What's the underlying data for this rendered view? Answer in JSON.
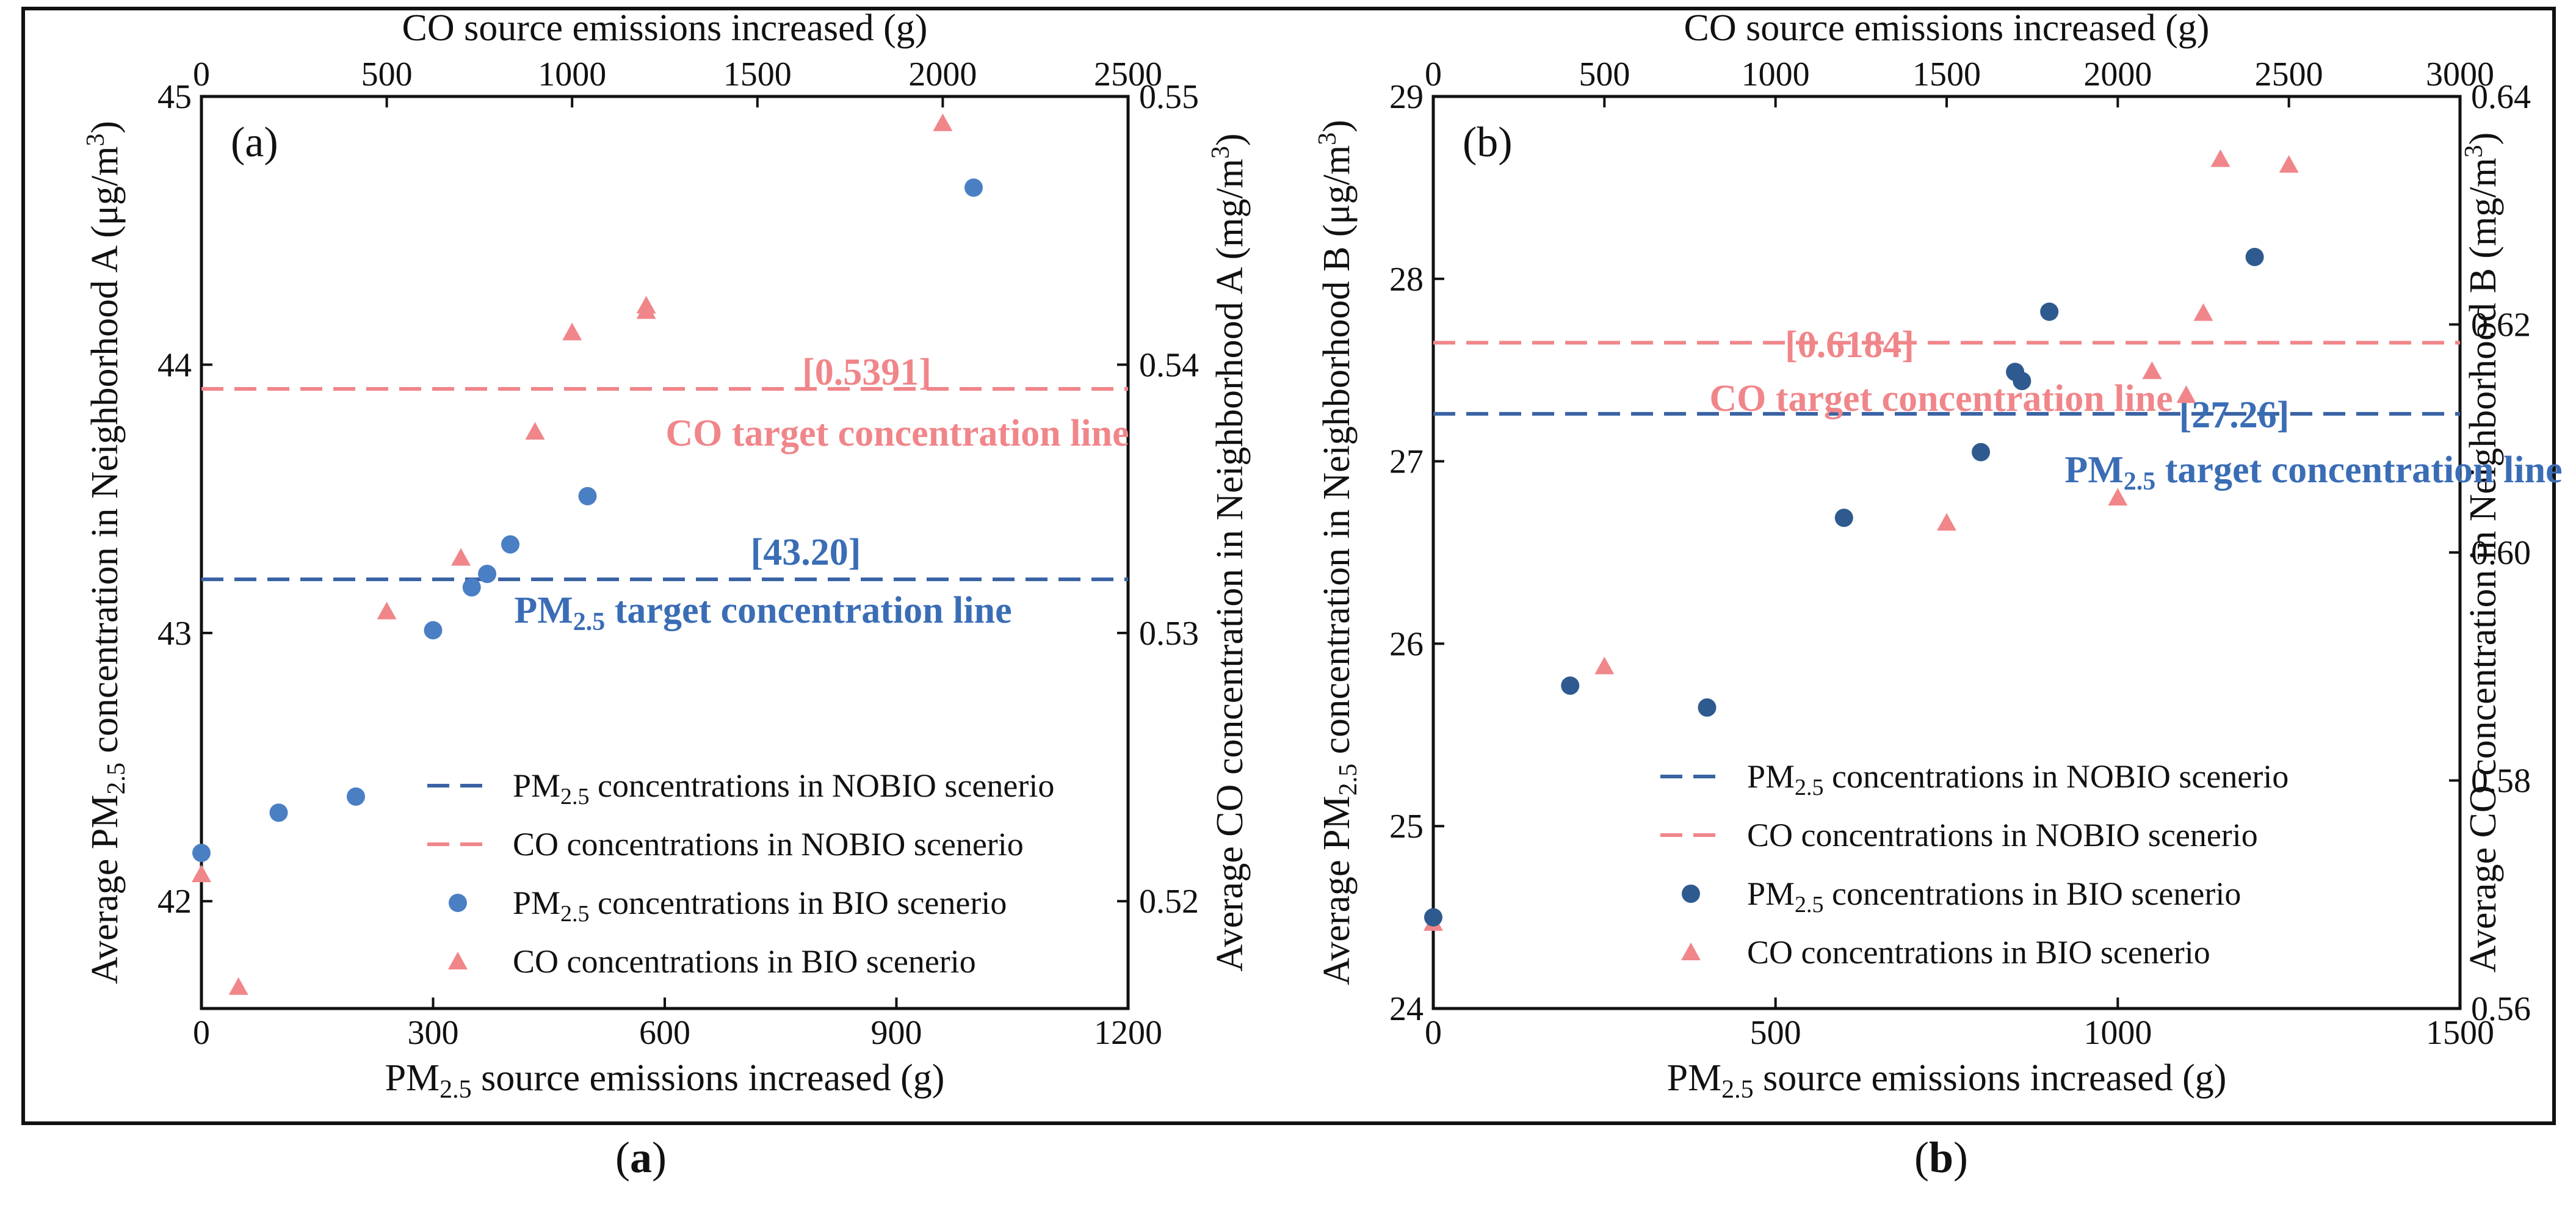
{
  "colors": {
    "pm_marker_a": "#4a7fc4",
    "pm_marker_b": "#2e5a8f",
    "co_marker": "#f0868a",
    "pm_line": "#3a63a3",
    "co_line": "#f0868a",
    "pm_text": "#3a6db5",
    "co_text": "#f0868a"
  },
  "captions": {
    "a": "a",
    "b": "b"
  },
  "chart_data": [
    {
      "type": "scatter",
      "panel_label": "(a)",
      "xlabel_main": "PM",
      "xlabel_sub": "2.5",
      "xlabel_rest": " source emissions increased (g)",
      "xlabel_top": "CO source emissions increased (g)",
      "ylabel_left_main": "Average PM",
      "ylabel_left_sub": "2.5",
      "ylabel_left_rest": " concentration in Neighborhood A (μg/m",
      "ylabel_left_sup": "3",
      "ylabel_left_end": ")",
      "ylabel_right_main": "Average CO concentration in Neighborhood A (mg/m",
      "ylabel_right_sup": "3",
      "ylabel_right_end": ")",
      "xlim": [
        0,
        1200
      ],
      "xticks": [
        "0",
        "300",
        "600",
        "900",
        "1200"
      ],
      "xlim_top": [
        0,
        2500
      ],
      "xticks_top": [
        "0",
        "500",
        "1000",
        "1500",
        "2000",
        "2500"
      ],
      "ylim_left": [
        41.6,
        45
      ],
      "yticks_left": [
        "42",
        "43",
        "44",
        "45"
      ],
      "ylim_right": [
        0.516,
        0.55
      ],
      "yticks_right": [
        "0.52",
        "0.53",
        "0.54",
        "0.55"
      ],
      "pm_bio": {
        "x": [
          0,
          100,
          200,
          300,
          350,
          370,
          400,
          500,
          1000
        ],
        "y": [
          42.18,
          42.33,
          42.39,
          43.01,
          43.17,
          43.22,
          43.33,
          43.51,
          44.66
        ]
      },
      "co_bio": {
        "x": [
          0,
          100,
          500,
          700,
          900,
          1000,
          1200,
          1200,
          2000
        ],
        "y": [
          0.521,
          0.5168,
          0.5308,
          0.5328,
          0.5375,
          0.5412,
          0.542,
          0.5422,
          0.549
        ]
      },
      "pm_nobio_value": 43.2,
      "co_nobio_value": 0.5391,
      "annotation_pm_value": "[43.20]",
      "annotation_pm_main": "PM",
      "annotation_pm_sub": "2.5",
      "annotation_pm_rest": " target concentration line",
      "annotation_co_value": "[0.5391]",
      "annotation_co": "CO target concentration line",
      "legend": [
        {
          "main": "PM",
          "sub": "2.5",
          "rest": " concentrations in NOBIO scenerio"
        },
        {
          "main": "CO concentrations in NOBIO scenerio",
          "sub": "",
          "rest": ""
        },
        {
          "main": "PM",
          "sub": "2.5",
          "rest": " concentrations in BIO scenerio"
        },
        {
          "main": "CO concentrations in BIO scenerio",
          "sub": "",
          "rest": ""
        }
      ],
      "legend_position": "lower-right"
    },
    {
      "type": "scatter",
      "panel_label": "(b)",
      "xlabel_main": "PM",
      "xlabel_sub": "2.5",
      "xlabel_rest": " source emissions increased (g)",
      "xlabel_top": "CO source emissions increased (g)",
      "ylabel_left_main": "Average PM",
      "ylabel_left_sub": "2.5",
      "ylabel_left_rest": " concentration in Neighborhood B (μg/m",
      "ylabel_left_sup": "3",
      "ylabel_left_end": ")",
      "ylabel_right_main": "Average CO concentration in Neighborhood B (mg/m",
      "ylabel_right_sup": "3",
      "ylabel_right_end": ")",
      "xlim": [
        0,
        1500
      ],
      "xticks": [
        "0",
        "500",
        "1000",
        "1500"
      ],
      "xlim_top": [
        0,
        3000
      ],
      "xticks_top": [
        "0",
        "500",
        "1000",
        "1500",
        "2000",
        "2500",
        "3000"
      ],
      "ylim_left": [
        24,
        29
      ],
      "yticks_left": [
        "24",
        "25",
        "26",
        "27",
        "28",
        "29"
      ],
      "ylim_right": [
        0.56,
        0.64
      ],
      "yticks_right": [
        "0.56",
        "0.58",
        "0.60",
        "0.62",
        "0.64"
      ],
      "pm_bio": {
        "x": [
          0,
          200,
          400,
          600,
          800,
          850,
          860,
          900,
          1200
        ],
        "y": [
          24.5,
          25.77,
          25.65,
          26.69,
          27.05,
          27.49,
          27.44,
          27.82,
          28.12
        ]
      },
      "co_bio": {
        "x": [
          0,
          500,
          1500,
          2000,
          2100,
          2200,
          2250,
          2300,
          2500
        ],
        "y": [
          0.5675,
          0.59,
          0.6026,
          0.6048,
          0.6159,
          0.6138,
          0.621,
          0.6345,
          0.634
        ]
      },
      "pm_nobio_value": 27.26,
      "co_nobio_value": 0.6184,
      "annotation_pm_value": "[27.26]",
      "annotation_pm_main": "PM",
      "annotation_pm_sub": "2.5",
      "annotation_pm_rest": " target concentration line",
      "annotation_co_value": "[0.6184]",
      "annotation_co": "CO target concentration line",
      "legend": [
        {
          "main": "PM",
          "sub": "2.5",
          "rest": " concentrations in NOBIO scenerio"
        },
        {
          "main": "CO concentrations in NOBIO scenerio",
          "sub": "",
          "rest": ""
        },
        {
          "main": "PM",
          "sub": "2.5",
          "rest": " concentrations in BIO scenerio"
        },
        {
          "main": "CO concentrations in BIO scenerio",
          "sub": "",
          "rest": ""
        }
      ],
      "legend_position": "lower-right"
    }
  ]
}
